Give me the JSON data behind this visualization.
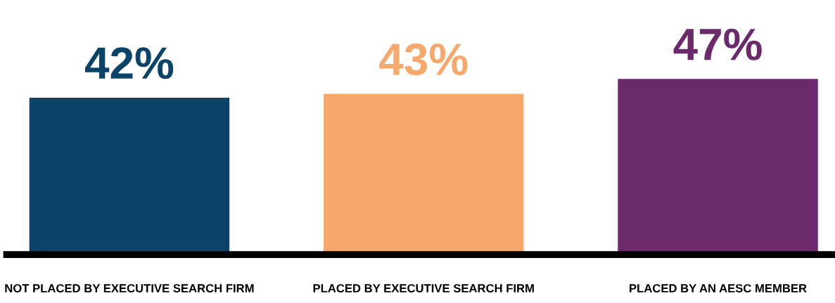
{
  "chart_data": {
    "type": "bar",
    "categories": [
      "NOT PLACED BY EXECUTIVE SEARCH FIRM",
      "PLACED BY EXECUTIVE SEARCH FIRM",
      "PLACED BY AN AESC MEMBER"
    ],
    "values": [
      42,
      43,
      47
    ],
    "colors": [
      "#0b4468",
      "#f7a86c",
      "#6b2a6b"
    ],
    "value_labels": [
      "42%",
      "43%",
      "47%"
    ],
    "grid": false,
    "legend": false
  }
}
